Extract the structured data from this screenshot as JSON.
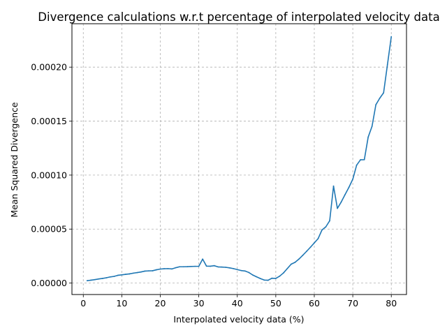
{
  "chart_data": {
    "type": "line",
    "title": "Divergence calculations w.r.t percentage of interpolated velocity data",
    "xlabel": "Interpolated velocity data (%)",
    "ylabel": "Mean Squared Divergence",
    "xlim": [
      -2.95,
      83.95
    ],
    "ylim": [
      -1.06e-05,
      0.0002402
    ],
    "xticks": [
      0,
      10,
      20,
      30,
      40,
      50,
      60,
      70,
      80
    ],
    "xtick_labels": [
      "0",
      "10",
      "20",
      "30",
      "40",
      "50",
      "60",
      "70",
      "80"
    ],
    "yticks": [
      0,
      5e-05,
      0.0001,
      0.00015,
      0.0002
    ],
    "ytick_labels": [
      "0.00000",
      "0.00005",
      "0.00010",
      "0.00015",
      "0.00020"
    ],
    "grid": true,
    "grid_style": "dashed",
    "series": [
      {
        "color": "#1f77b4",
        "x": [
          1,
          2,
          3,
          4,
          5,
          6,
          7,
          8,
          9,
          10,
          11,
          12,
          13,
          14,
          15,
          16,
          17,
          18,
          19,
          20,
          21,
          22,
          23,
          24,
          25,
          26,
          27,
          28,
          29,
          30,
          31,
          32,
          33,
          34,
          35,
          36,
          37,
          38,
          39,
          40,
          41,
          42,
          43,
          44,
          45,
          46,
          47,
          48,
          49,
          50,
          51,
          52,
          53,
          54,
          55,
          56,
          57,
          58,
          59,
          60,
          61,
          62,
          63,
          64,
          65,
          66,
          67,
          68,
          69,
          70,
          71,
          72,
          73,
          74,
          75,
          76,
          77,
          78,
          79,
          80
        ],
        "y": [
          2.2e-06,
          2.7e-06,
          3.2e-06,
          3.8e-06,
          4.3e-06,
          4.9e-06,
          5.7e-06,
          6.2e-06,
          7.2e-06,
          7.6e-06,
          8.1e-06,
          8.5e-06,
          9.2e-06,
          9.7e-06,
          1.03e-05,
          1.11e-05,
          1.13e-05,
          1.14e-05,
          1.23e-05,
          1.3e-05,
          1.33e-05,
          1.34e-05,
          1.31e-05,
          1.42e-05,
          1.51e-05,
          1.51e-05,
          1.52e-05,
          1.54e-05,
          1.55e-05,
          1.55e-05,
          2.22e-05,
          1.57e-05,
          1.56e-05,
          1.61e-05,
          1.5e-05,
          1.48e-05,
          1.46e-05,
          1.41e-05,
          1.34e-05,
          1.25e-05,
          1.16e-05,
          1.12e-05,
          9.8e-06,
          7.5e-06,
          5.8e-06,
          4.2e-06,
          2.8e-06,
          2.6e-06,
          4.5e-06,
          4.3e-06,
          6.4e-06,
          9.4e-06,
          1.35e-05,
          1.75e-05,
          1.92e-05,
          2.22e-05,
          2.57e-05,
          2.94e-05,
          3.32e-05,
          3.72e-05,
          4.12e-05,
          4.92e-05,
          5.21e-05,
          5.77e-05,
          8.98e-05,
          6.92e-05,
          7.51e-05,
          8.2e-05,
          8.87e-05,
          9.62e-05,
          0.0001092,
          0.0001142,
          0.0001143,
          0.0001352,
          0.0001452,
          0.0001652,
          0.0001712,
          0.0001762,
          0.0002022,
          0.0002282
        ]
      }
    ]
  }
}
